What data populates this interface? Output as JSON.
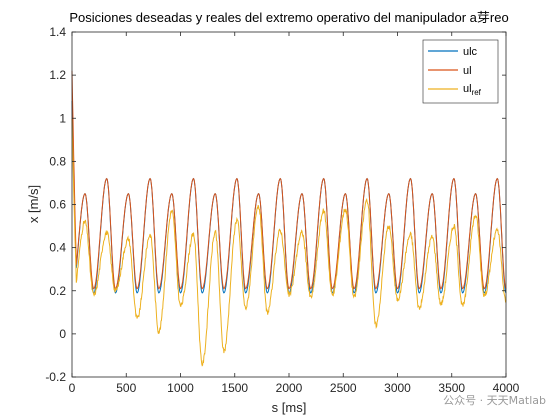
{
  "chart_data": {
    "type": "line",
    "title": "Posiciones deseadas y reales del extremo operativo del manipulador a芽reo",
    "xlabel": "s [ms]",
    "ylabel": "x [m/s]",
    "xlim": [
      0,
      4000
    ],
    "ylim": [
      -0.2,
      1.4
    ],
    "xticks": [
      0,
      500,
      1000,
      1500,
      2000,
      2500,
      3000,
      3500,
      4000
    ],
    "yticks": [
      -0.2,
      0,
      0.2,
      0.4,
      0.6,
      0.8,
      1.0,
      1.2,
      1.4
    ],
    "xtick_labels": [
      "0",
      "500",
      "1000",
      "1500",
      "2000",
      "2500",
      "3000",
      "3500",
      "4000"
    ],
    "ytick_labels": [
      "-0.2",
      "0",
      "0.2",
      "0.4",
      "0.6",
      "0.8",
      "1",
      "1.2",
      "1.4"
    ],
    "grid": false,
    "legend_position": "top-right",
    "series": [
      {
        "name": "ulc",
        "color": "#0072BD",
        "start": 1.08,
        "period_ms": 200,
        "peaks": [
          0.65,
          0.72
        ],
        "trough_avg": 0.19
      },
      {
        "name": "ul",
        "color": "#D95319",
        "start": 1.22,
        "period_ms": 200,
        "peaks": [
          0.65,
          0.72
        ],
        "trough_avg": 0.21
      },
      {
        "name": "ul",
        "name_subscript": "ref",
        "color": "#EDB120",
        "start": 1.0,
        "period_ms": 200,
        "peaks": [
          0.52,
          0.47,
          0.44,
          0.46,
          0.57,
          0.46,
          0.47,
          0.53,
          0.59,
          0.48,
          0.47,
          0.57,
          0.58,
          0.62,
          0.5,
          0.46,
          0.45,
          0.5,
          0.55,
          0.48
        ],
        "troughs": [
          0.15,
          0.18,
          0.2,
          0.07,
          0.01,
          0.13,
          -0.14,
          -0.08,
          0.12,
          0.1,
          0.18,
          0.17,
          0.18,
          0.17,
          0.04,
          0.16,
          0.12,
          0.14,
          0.13,
          0.18
        ]
      }
    ]
  },
  "watermark": "公众号 · 天天Matlab"
}
